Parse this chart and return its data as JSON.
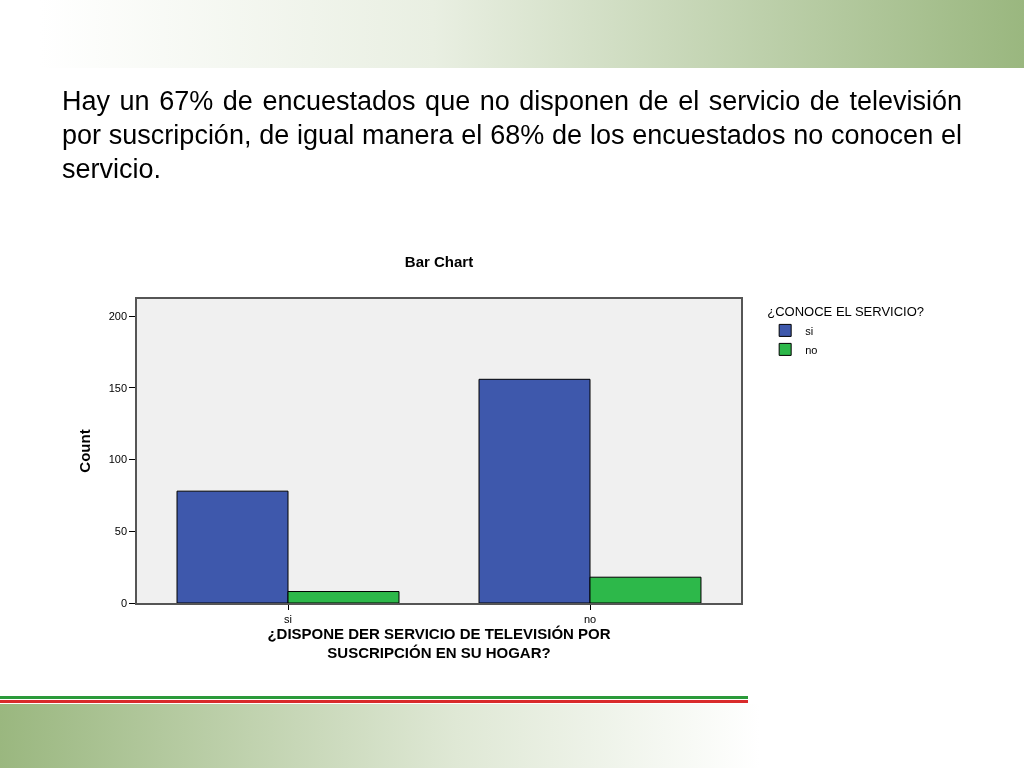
{
  "chart_data": {
    "type": "bar",
    "title": "Bar Chart",
    "annotations": [
      "Hay un 67% de encuestados que no disponen de el servicio de televisión por suscripción, de igual manera el 68% de los encuestados no conocen el servicio."
    ],
    "xlabel": "¿DISPONE DER SERVICIO DE TELEVISIÓN POR SUSCRIPCIÓN EN SU HOGAR?",
    "ylabel": "Count",
    "legend_title": "¿CONOCE EL SERVICIO?",
    "categories": [
      "si",
      "no"
    ],
    "series": [
      {
        "name": "si",
        "color": "#3e58ac",
        "values": [
          78,
          156
        ]
      },
      {
        "name": "no",
        "color": "#2db84a",
        "values": [
          8,
          18
        ]
      }
    ],
    "ylim": [
      0,
      212
    ],
    "yticks": [
      0,
      50,
      100,
      150,
      200
    ],
    "grid": false,
    "legend": "top right"
  }
}
